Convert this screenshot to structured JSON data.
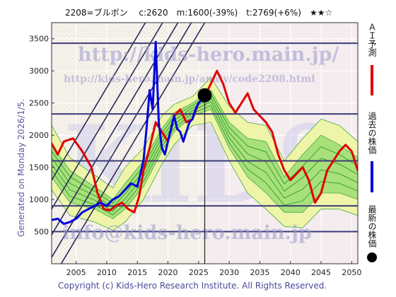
{
  "header": {
    "title": "2208=ブルボン　 c:2620　m:1600(-39%)　t:2769(+6%)　★★☆"
  },
  "side_label": "Generated on Monday 2026/1/5.",
  "footer": "Copyright (c) Kids-Hero Research Institute. All Rights Reserved.",
  "watermark": {
    "url": "http://kids-hero.main.jp/",
    "page_url": "http://kids-hero.main.jp/analy/code2208.html",
    "email": "info@kids-hero.main.jp",
    "logo": "KIDS"
  },
  "legend": [
    {
      "label": "ＡＩ予測",
      "color": "#e00000"
    },
    {
      "label": "過去の株価",
      "color": "#0000dd"
    },
    {
      "label": "最新の株価",
      "color": "#000000"
    }
  ],
  "chart_data": {
    "type": "line",
    "x_range": [
      2001,
      2051
    ],
    "y_range": [
      0,
      3750
    ],
    "x_ticks": [
      2005,
      2010,
      2015,
      2020,
      2025,
      2030,
      2035,
      2040,
      2045,
      2050
    ],
    "y_ticks": [
      500,
      1000,
      1500,
      2000,
      2500,
      3000,
      3500
    ],
    "horizontal_lines": [
      500,
      900,
      1600,
      2330,
      3430
    ],
    "current_marker": {
      "x": 2026.0,
      "y": 2620
    },
    "band_outer_upper": [
      [
        2001,
        2150
      ],
      [
        2004,
        1650
      ],
      [
        2008,
        1380
      ],
      [
        2011,
        1180
      ],
      [
        2013,
        1500
      ],
      [
        2016,
        1800
      ],
      [
        2019,
        2300
      ],
      [
        2021,
        2480
      ],
      [
        2024,
        2600
      ],
      [
        2027,
        2900
      ],
      [
        2030,
        2450
      ],
      [
        2033,
        2200
      ],
      [
        2036,
        2150
      ],
      [
        2039,
        1600
      ],
      [
        2042,
        1950
      ],
      [
        2045,
        2250
      ],
      [
        2048,
        2150
      ],
      [
        2051,
        1900
      ]
    ],
    "band_outer_lower": [
      [
        2001,
        1150
      ],
      [
        2004,
        750
      ],
      [
        2008,
        650
      ],
      [
        2011,
        520
      ],
      [
        2013,
        650
      ],
      [
        2016,
        1000
      ],
      [
        2019,
        1550
      ],
      [
        2021,
        1850
      ],
      [
        2024,
        2150
      ],
      [
        2027,
        2200
      ],
      [
        2030,
        1600
      ],
      [
        2033,
        1100
      ],
      [
        2036,
        850
      ],
      [
        2039,
        580
      ],
      [
        2042,
        560
      ],
      [
        2045,
        850
      ],
      [
        2048,
        850
      ],
      [
        2051,
        750
      ]
    ],
    "band_inner_upper": [
      [
        2001,
        1850
      ],
      [
        2004,
        1450
      ],
      [
        2008,
        1200
      ],
      [
        2011,
        1000
      ],
      [
        2013,
        1250
      ],
      [
        2016,
        1600
      ],
      [
        2019,
        2100
      ],
      [
        2021,
        2350
      ],
      [
        2024,
        2500
      ],
      [
        2027,
        2700
      ],
      [
        2030,
        2200
      ],
      [
        2033,
        1950
      ],
      [
        2036,
        1900
      ],
      [
        2039,
        1350
      ],
      [
        2042,
        1700
      ],
      [
        2045,
        2000
      ],
      [
        2048,
        1850
      ],
      [
        2051,
        1650
      ]
    ],
    "band_inner_lower": [
      [
        2001,
        1350
      ],
      [
        2004,
        950
      ],
      [
        2008,
        850
      ],
      [
        2011,
        700
      ],
      [
        2013,
        850
      ],
      [
        2016,
        1200
      ],
      [
        2019,
        1750
      ],
      [
        2021,
        2050
      ],
      [
        2024,
        2300
      ],
      [
        2027,
        2400
      ],
      [
        2030,
        1800
      ],
      [
        2033,
        1350
      ],
      [
        2036,
        1100
      ],
      [
        2039,
        800
      ],
      [
        2042,
        800
      ],
      [
        2045,
        1100
      ],
      [
        2048,
        1100
      ],
      [
        2051,
        1000
      ]
    ],
    "series": [
      {
        "name": "ＡＩ予測",
        "color": "#e00000",
        "points": [
          [
            2001,
            1870
          ],
          [
            2002,
            1700
          ],
          [
            2003,
            1900
          ],
          [
            2004.5,
            1950
          ],
          [
            2006,
            1750
          ],
          [
            2007.5,
            1500
          ],
          [
            2008.5,
            1100
          ],
          [
            2009.5,
            850
          ],
          [
            2010.5,
            830
          ],
          [
            2011.5,
            900
          ],
          [
            2012.5,
            950
          ],
          [
            2013.5,
            850
          ],
          [
            2014.5,
            800
          ],
          [
            2015.3,
            1050
          ],
          [
            2016,
            1450
          ],
          [
            2017,
            1800
          ],
          [
            2018,
            2200
          ],
          [
            2019,
            2050
          ],
          [
            2020,
            1900
          ],
          [
            2021,
            2300
          ],
          [
            2022,
            2400
          ],
          [
            2023,
            2200
          ],
          [
            2024,
            2250
          ],
          [
            2025,
            2500
          ],
          [
            2026,
            2600
          ],
          [
            2027,
            2800
          ],
          [
            2028,
            3000
          ],
          [
            2029,
            2800
          ],
          [
            2030,
            2500
          ],
          [
            2031,
            2350
          ],
          [
            2032,
            2500
          ],
          [
            2033,
            2650
          ],
          [
            2034,
            2400
          ],
          [
            2035,
            2300
          ],
          [
            2036,
            2200
          ],
          [
            2037,
            2050
          ],
          [
            2038,
            1700
          ],
          [
            2039,
            1450
          ],
          [
            2040,
            1300
          ],
          [
            2041,
            1400
          ],
          [
            2042,
            1500
          ],
          [
            2043,
            1300
          ],
          [
            2044,
            950
          ],
          [
            2045,
            1100
          ],
          [
            2046,
            1450
          ],
          [
            2047,
            1600
          ],
          [
            2048,
            1750
          ],
          [
            2049,
            1850
          ],
          [
            2050,
            1750
          ],
          [
            2051,
            1450
          ]
        ]
      },
      {
        "name": "過去の株価",
        "color": "#0000dd",
        "points": [
          [
            2001,
            680
          ],
          [
            2002,
            700
          ],
          [
            2003,
            620
          ],
          [
            2004,
            650
          ],
          [
            2005,
            700
          ],
          [
            2006,
            800
          ],
          [
            2007,
            850
          ],
          [
            2008,
            900
          ],
          [
            2009,
            950
          ],
          [
            2010,
            900
          ],
          [
            2011,
            1000
          ],
          [
            2012,
            1050
          ],
          [
            2013,
            1150
          ],
          [
            2014,
            1250
          ],
          [
            2015,
            1200
          ],
          [
            2015.5,
            1400
          ],
          [
            2016,
            1600
          ],
          [
            2016.5,
            2100
          ],
          [
            2017,
            2700
          ],
          [
            2017.5,
            2400
          ],
          [
            2018,
            3450
          ],
          [
            2018.5,
            2200
          ],
          [
            2019,
            1800
          ],
          [
            2019.5,
            1700
          ],
          [
            2020,
            1900
          ],
          [
            2020.5,
            2100
          ],
          [
            2021,
            2300
          ],
          [
            2021.5,
            2100
          ],
          [
            2022,
            2050
          ],
          [
            2022.5,
            1900
          ],
          [
            2023,
            2050
          ],
          [
            2023.5,
            2200
          ],
          [
            2024,
            2250
          ],
          [
            2024.5,
            2400
          ],
          [
            2025,
            2500
          ],
          [
            2025.5,
            2550
          ],
          [
            2026,
            2620
          ]
        ]
      }
    ]
  }
}
